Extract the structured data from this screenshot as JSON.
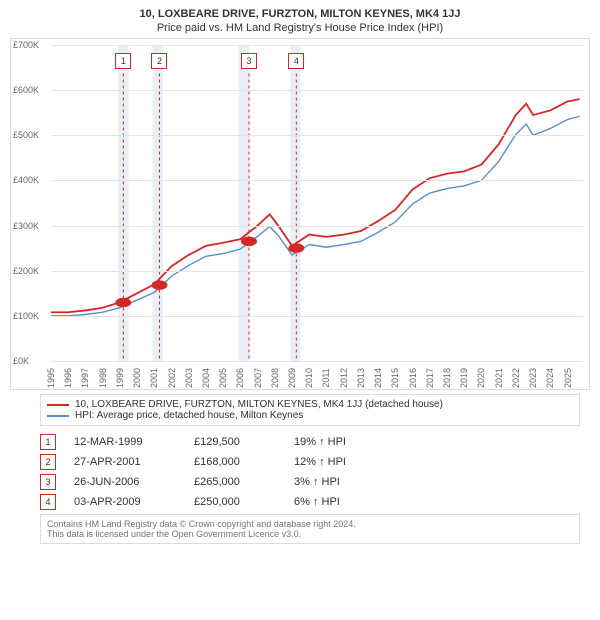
{
  "title": "10, LOXBEARE DRIVE, FURZTON, MILTON KEYNES, MK4 1JJ",
  "subtitle": "Price paid vs. HM Land Registry's House Price Index (HPI)",
  "chart": {
    "type": "line",
    "ylim": [
      0,
      700000
    ],
    "ytick_step": 100000,
    "y_ticks": [
      "£0K",
      "£100K",
      "£200K",
      "£300K",
      "£400K",
      "£500K",
      "£600K",
      "£700K"
    ],
    "xlim": [
      1995,
      2025.9
    ],
    "x_ticks": [
      1995,
      1996,
      1997,
      1998,
      1999,
      2000,
      2001,
      2002,
      2003,
      2004,
      2005,
      2006,
      2007,
      2008,
      2009,
      2010,
      2011,
      2012,
      2013,
      2014,
      2015,
      2016,
      2017,
      2018,
      2019,
      2020,
      2021,
      2022,
      2023,
      2024,
      2025
    ],
    "colors": {
      "red": "#d62728",
      "blue": "#5b8fc9",
      "grid": "#e4e4e4",
      "band": "#e9eef7",
      "box_border": "#d62728",
      "bg": "#ffffff"
    },
    "bands": [
      [
        1998.9,
        1999.5
      ],
      [
        2000.9,
        2001.5
      ],
      [
        2005.9,
        2006.5
      ],
      [
        2008.9,
        2009.5
      ]
    ],
    "markers": [
      {
        "n": "1",
        "x": 1999.2,
        "y": 129500
      },
      {
        "n": "2",
        "x": 2001.3,
        "y": 168000
      },
      {
        "n": "3",
        "x": 2006.5,
        "y": 265000
      },
      {
        "n": "4",
        "x": 2009.25,
        "y": 250000
      }
    ],
    "series_red": [
      [
        1995,
        108000
      ],
      [
        1996,
        108000
      ],
      [
        1997,
        112000
      ],
      [
        1998,
        118000
      ],
      [
        1999,
        130000
      ],
      [
        2000,
        150000
      ],
      [
        2001,
        170000
      ],
      [
        2002,
        210000
      ],
      [
        2003,
        235000
      ],
      [
        2004,
        255000
      ],
      [
        2005,
        262000
      ],
      [
        2006,
        270000
      ],
      [
        2007,
        300000
      ],
      [
        2007.7,
        325000
      ],
      [
        2008.2,
        300000
      ],
      [
        2009,
        255000
      ],
      [
        2010,
        280000
      ],
      [
        2011,
        275000
      ],
      [
        2012,
        280000
      ],
      [
        2013,
        288000
      ],
      [
        2014,
        310000
      ],
      [
        2015,
        335000
      ],
      [
        2016,
        380000
      ],
      [
        2017,
        405000
      ],
      [
        2018,
        415000
      ],
      [
        2019,
        420000
      ],
      [
        2020,
        435000
      ],
      [
        2021,
        480000
      ],
      [
        2022,
        545000
      ],
      [
        2022.6,
        570000
      ],
      [
        2023,
        545000
      ],
      [
        2024,
        555000
      ],
      [
        2025,
        575000
      ],
      [
        2025.7,
        580000
      ]
    ],
    "series_blue": [
      [
        1995,
        100000
      ],
      [
        1996,
        100000
      ],
      [
        1997,
        103000
      ],
      [
        1998,
        108000
      ],
      [
        1999,
        118000
      ],
      [
        2000,
        135000
      ],
      [
        2001,
        152000
      ],
      [
        2002,
        188000
      ],
      [
        2003,
        212000
      ],
      [
        2004,
        232000
      ],
      [
        2005,
        238000
      ],
      [
        2006,
        248000
      ],
      [
        2007,
        276000
      ],
      [
        2007.7,
        298000
      ],
      [
        2008.2,
        278000
      ],
      [
        2009,
        235000
      ],
      [
        2010,
        258000
      ],
      [
        2011,
        252000
      ],
      [
        2012,
        258000
      ],
      [
        2013,
        265000
      ],
      [
        2014,
        285000
      ],
      [
        2015,
        308000
      ],
      [
        2016,
        348000
      ],
      [
        2017,
        372000
      ],
      [
        2018,
        382000
      ],
      [
        2019,
        388000
      ],
      [
        2020,
        400000
      ],
      [
        2021,
        442000
      ],
      [
        2022,
        502000
      ],
      [
        2022.6,
        525000
      ],
      [
        2023,
        500000
      ],
      [
        2024,
        515000
      ],
      [
        2025,
        535000
      ],
      [
        2025.7,
        542000
      ]
    ],
    "line_widths": {
      "red": 1.8,
      "blue": 1.4
    },
    "font_sizes": {
      "title": 11,
      "axis": 9,
      "legend": 10,
      "table": 11,
      "footer": 9
    }
  },
  "legend": {
    "red": "10, LOXBEARE DRIVE, FURZTON, MILTON KEYNES, MK4 1JJ (detached house)",
    "blue": "HPI: Average price, detached house, Milton Keynes"
  },
  "rows": [
    {
      "n": "1",
      "date": "12-MAR-1999",
      "price": "£129,500",
      "chg": "19% ↑ HPI"
    },
    {
      "n": "2",
      "date": "27-APR-2001",
      "price": "£168,000",
      "chg": "12% ↑ HPI"
    },
    {
      "n": "3",
      "date": "26-JUN-2006",
      "price": "£265,000",
      "chg": "3% ↑ HPI"
    },
    {
      "n": "4",
      "date": "03-APR-2009",
      "price": "£250,000",
      "chg": "6% ↑ HPI"
    }
  ],
  "footer1": "Contains HM Land Registry data © Crown copyright and database right 2024.",
  "footer2": "This data is licensed under the Open Government Licence v3.0."
}
